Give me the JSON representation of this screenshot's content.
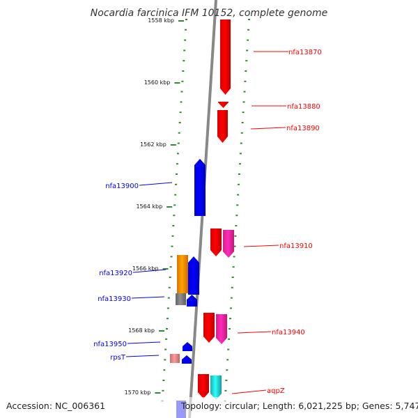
{
  "title": "Nocardia farcinica IFM 10152, complete genome",
  "accession": "Accession: NC_006361",
  "topology": "Topology: circular; Length: 6,021,225 bp; Genes: 5,747",
  "ruler": [
    {
      "label": "1558 kbp"
    },
    {
      "label": "1560 kbp"
    },
    {
      "label": "1562 kbp"
    },
    {
      "label": "1564 kbp"
    },
    {
      "label": "1566 kbp"
    },
    {
      "label": "1568 kbp"
    },
    {
      "label": "1570 kbp"
    }
  ],
  "genes": [
    {
      "name": "nfa13870",
      "strand": "+",
      "color": "#ff0000"
    },
    {
      "name": "nfa13880",
      "strand": "+",
      "color": "#ff0000"
    },
    {
      "name": "nfa13890",
      "strand": "+",
      "color": "#ff0000"
    },
    {
      "name": "nfa13900",
      "strand": "-",
      "color": "#0000ff"
    },
    {
      "name": "nfa13910",
      "strand": "+",
      "color": "#ff0000"
    },
    {
      "name": "nfa13920",
      "strand": "-",
      "color": "#0000ff"
    },
    {
      "name": "nfa13930",
      "strand": "-",
      "color": "#0000ff"
    },
    {
      "name": "nfa13940",
      "strand": "+",
      "color": "#ff0000"
    },
    {
      "name": "nfa13950",
      "strand": "-",
      "color": "#0000ff"
    },
    {
      "name": "rpsT",
      "strand": "-",
      "color": "#0000ff"
    },
    {
      "name": "aqpZ",
      "strand": "+",
      "color": "#ff0000"
    }
  ],
  "colors": {
    "plus_strand": "#ff0000",
    "minus_strand": "#0000ff",
    "backbone": "#888888",
    "ticks": "#2e8b2e",
    "pink": "#ff2299",
    "orange": "#ff8800",
    "gray": "#777777",
    "salmon": "#e88080",
    "cyan": "#22cccc"
  }
}
